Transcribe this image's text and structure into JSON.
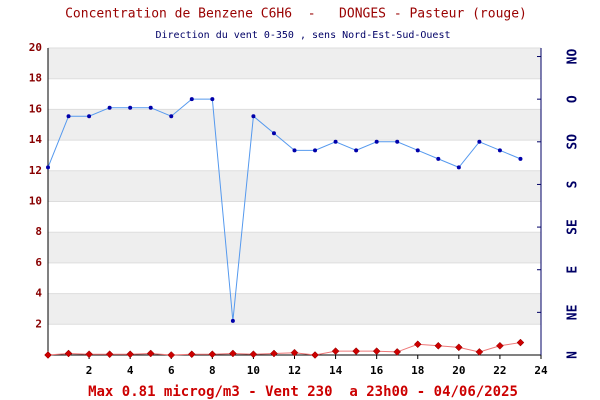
{
  "chart_data": {
    "type": "line",
    "title": "Concentration de Benzene C6H6  -   DONGES - Pasteur (rouge)",
    "subtitle": "Direction du vent 0-350 , sens Nord-Est-Sud-Ouest",
    "footer": "Max 0.81 microg/m3 - Vent 230  a 23h00 - 04/06/2025",
    "x": [
      0,
      1,
      2,
      3,
      4,
      5,
      6,
      7,
      8,
      9,
      10,
      11,
      12,
      13,
      14,
      15,
      16,
      17,
      18,
      19,
      20,
      21,
      22,
      23
    ],
    "xlim": [
      0,
      24
    ],
    "xticks": [
      2,
      4,
      6,
      8,
      10,
      12,
      14,
      16,
      18,
      20,
      22,
      24
    ],
    "ylim": [
      0,
      20
    ],
    "yticks": [
      2,
      4,
      6,
      8,
      10,
      12,
      14,
      16,
      18,
      20
    ],
    "y2lim": [
      0,
      360
    ],
    "y2ticks": [
      {
        "value": 0,
        "label": "N"
      },
      {
        "value": 50,
        "label": "NE"
      },
      {
        "value": 100,
        "label": "E"
      },
      {
        "value": 150,
        "label": "SE"
      },
      {
        "value": 200,
        "label": "S"
      },
      {
        "value": 250,
        "label": "SO"
      },
      {
        "value": 300,
        "label": "O"
      },
      {
        "value": 350,
        "label": "NO"
      }
    ],
    "grid_bands": true,
    "series": [
      {
        "name": "Benzene",
        "color": "#cc0000",
        "values": [
          0,
          0.1,
          0.05,
          0.05,
          0.05,
          0.1,
          0,
          0.05,
          0.05,
          0.1,
          0.05,
          0.1,
          0.15,
          0,
          0.25,
          0.25,
          0.25,
          0.2,
          0.7,
          0.6,
          0.5,
          0.2,
          0.6,
          0.81
        ]
      },
      {
        "name": "Vent",
        "color": "#0000aa",
        "axis": "y2",
        "values": [
          220,
          280,
          280,
          290,
          290,
          290,
          280,
          300,
          300,
          40,
          280,
          260,
          240,
          240,
          250,
          240,
          250,
          250,
          240,
          230,
          220,
          250,
          240,
          230
        ]
      }
    ]
  }
}
